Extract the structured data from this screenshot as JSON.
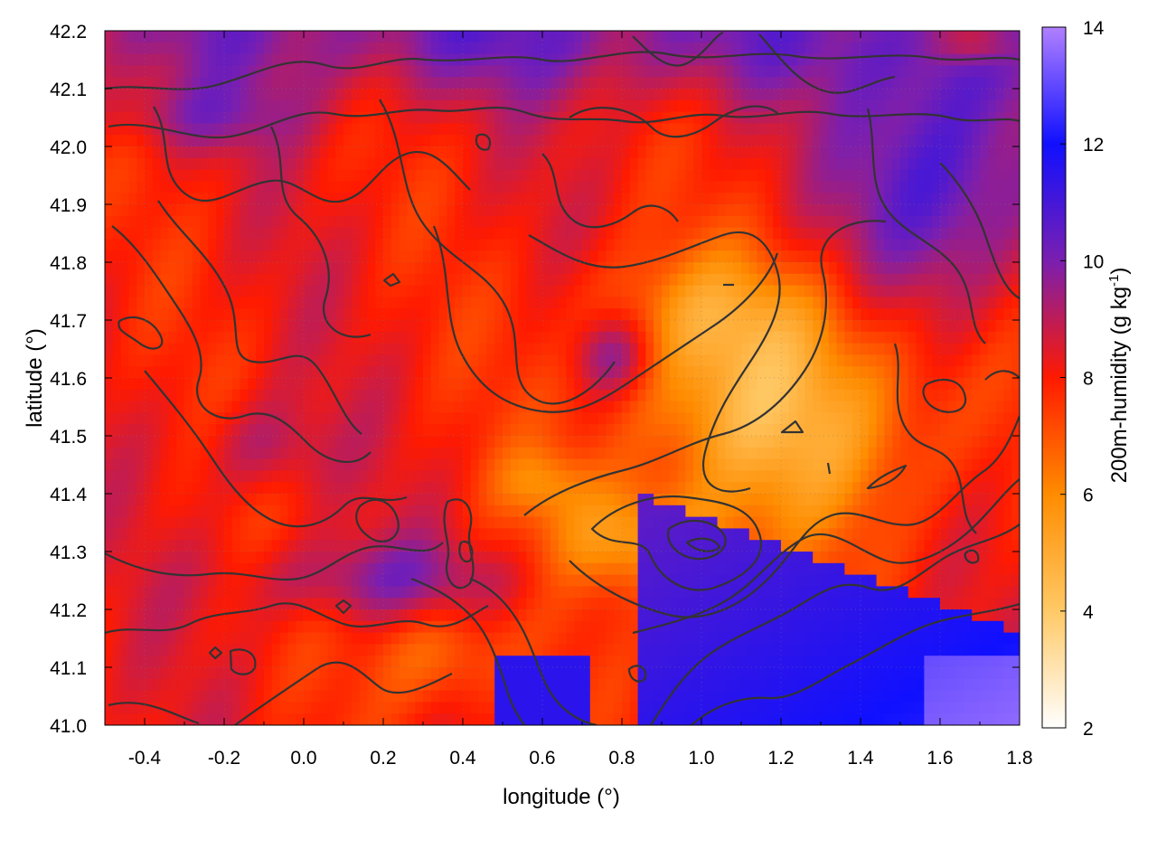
{
  "chart_data": {
    "type": "heatmap",
    "xlabel": "longitude (°)",
    "ylabel": "latitude (°)",
    "colorbar_label": "200m-humidity (g kg-1)",
    "colorbar_label_parts": {
      "base": "200m-humidity (g kg",
      "superscript": "-1",
      "end": ")"
    },
    "xlim": [
      -0.5,
      1.8
    ],
    "ylim": [
      41.0,
      42.2
    ],
    "clim": [
      2,
      14
    ],
    "x_ticks": [
      -0.4,
      -0.2,
      0.0,
      0.2,
      0.4,
      0.6,
      0.8,
      1.0,
      1.2,
      1.4,
      1.6,
      1.8
    ],
    "x_tick_labels": [
      "-0.4",
      "-0.2",
      "0.0",
      "0.2",
      "0.4",
      "0.6",
      "0.8",
      "1.0",
      "1.2",
      "1.4",
      "1.6",
      "1.8"
    ],
    "y_ticks": [
      41.0,
      41.1,
      41.2,
      41.3,
      41.4,
      41.5,
      41.6,
      41.7,
      41.8,
      41.9,
      42.0,
      42.1,
      42.2
    ],
    "y_tick_labels": [
      "41.0",
      "41.1",
      "41.2",
      "41.3",
      "41.4",
      "41.5",
      "41.6",
      "41.7",
      "41.8",
      "41.9",
      "42.0",
      "42.1",
      "42.2"
    ],
    "colorbar_ticks": [
      2,
      4,
      6,
      8,
      10,
      12,
      14
    ],
    "colorbar_tick_labels": [
      "2",
      "4",
      "6",
      "8",
      "10",
      "12",
      "14"
    ],
    "colormap": [
      {
        "value": 2,
        "color": "#ffffff"
      },
      {
        "value": 4,
        "color": "#ffc966"
      },
      {
        "value": 6,
        "color": "#ff8c00"
      },
      {
        "value": 8,
        "color": "#ff1a00"
      },
      {
        "value": 10,
        "color": "#7a1fb0"
      },
      {
        "value": 12,
        "color": "#1010ff"
      },
      {
        "value": 14,
        "color": "#b080ff"
      }
    ],
    "grid": true,
    "contour_color": "#333333"
  }
}
